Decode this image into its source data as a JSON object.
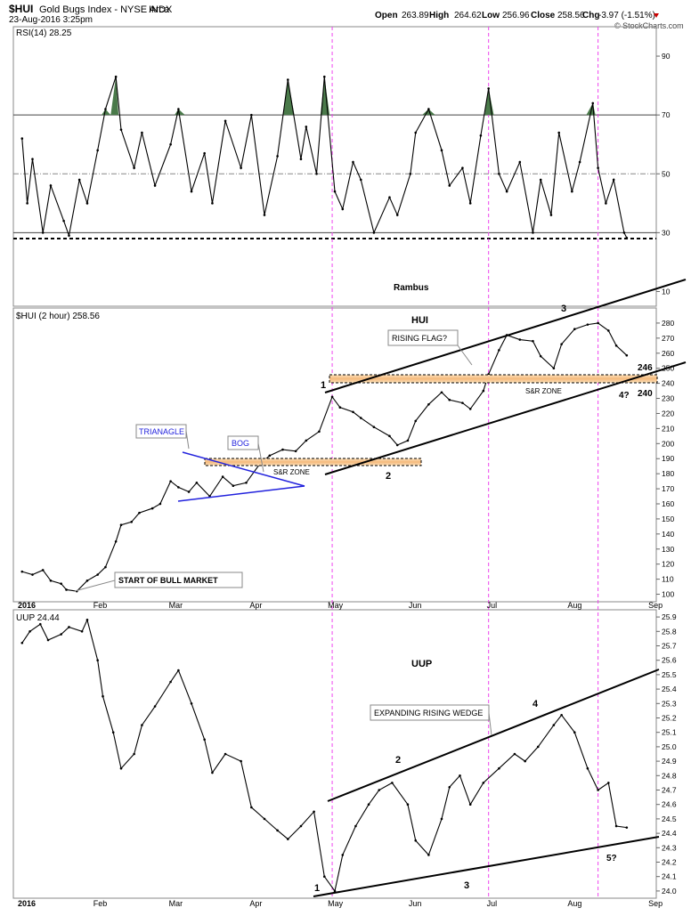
{
  "header": {
    "symbol": "$HUI",
    "name": "Gold Bugs Index - NYSE Arca",
    "exchange": "INDX",
    "date": "23-Aug-2016 3:25pm",
    "open_label": "Open",
    "open": "263.89",
    "high_label": "High",
    "high": "264.62",
    "low_label": "Low",
    "low": "256.96",
    "close_label": "Close",
    "close": "258.56",
    "chg_label": "Chg",
    "chg": "-3.97 (-1.51%)",
    "watermark": "© StockCharts.com"
  },
  "colors": {
    "price": "#000000",
    "trendline": "#000000",
    "triangle": "#2222dd",
    "sr_zone": "#f7c48a",
    "event_line": "#ee44ee",
    "rsi_fill": "#4a7a4a",
    "chg_down": "#cc0000"
  },
  "months": [
    "2016",
    "Feb",
    "Mar",
    "Apr",
    "May",
    "Jun",
    "Jul",
    "Aug",
    "Sep"
  ],
  "event_dates": [
    "2016-05-02",
    "2016-07-01",
    "2016-08-12"
  ],
  "chart_data": [
    {
      "type": "line",
      "panel": "rsi",
      "label": "RSI(14) 28.25",
      "ylim": [
        5,
        100
      ],
      "yticks": [
        10,
        30,
        50,
        70,
        90
      ],
      "reference_lines": [
        30,
        50,
        70
      ],
      "support_line": 28,
      "x_unit": "date",
      "series": [
        {
          "x": [
            "2016-01-04",
            "2016-01-06",
            "2016-01-08",
            "2016-01-12",
            "2016-01-15",
            "2016-01-20",
            "2016-01-22",
            "2016-01-26",
            "2016-01-29",
            "2016-02-02",
            "2016-02-05",
            "2016-02-09",
            "2016-02-11",
            "2016-02-16",
            "2016-02-19",
            "2016-02-24",
            "2016-03-01",
            "2016-03-04",
            "2016-03-09",
            "2016-03-14",
            "2016-03-17",
            "2016-03-22",
            "2016-03-28",
            "2016-04-01",
            "2016-04-06",
            "2016-04-11",
            "2016-04-15",
            "2016-04-20",
            "2016-04-22",
            "2016-04-26",
            "2016-04-29",
            "2016-05-03",
            "2016-05-06",
            "2016-05-10",
            "2016-05-13",
            "2016-05-18",
            "2016-05-24",
            "2016-05-27",
            "2016-06-01",
            "2016-06-03",
            "2016-06-08",
            "2016-06-13",
            "2016-06-16",
            "2016-06-21",
            "2016-06-24",
            "2016-06-28",
            "2016-07-01",
            "2016-07-05",
            "2016-07-08",
            "2016-07-13",
            "2016-07-18",
            "2016-07-21",
            "2016-07-25",
            "2016-07-28",
            "2016-08-02",
            "2016-08-05",
            "2016-08-10",
            "2016-08-12",
            "2016-08-15",
            "2016-08-18",
            "2016-08-22",
            "2016-08-23"
          ],
          "values": [
            62,
            40,
            55,
            30,
            46,
            34,
            29,
            48,
            40,
            58,
            72,
            83,
            65,
            52,
            64,
            46,
            60,
            72,
            44,
            57,
            40,
            68,
            52,
            70,
            36,
            56,
            82,
            55,
            66,
            50,
            83,
            44,
            38,
            54,
            48,
            30,
            42,
            36,
            50,
            64,
            72,
            58,
            46,
            52,
            40,
            63,
            79,
            50,
            44,
            54,
            30,
            48,
            36,
            64,
            44,
            54,
            74,
            52,
            40,
            48,
            30,
            28.25
          ]
        }
      ]
    },
    {
      "type": "line",
      "panel": "price",
      "label": "$HUI (2 hour) 258.56",
      "title": "HUI",
      "ylim": [
        95,
        290
      ],
      "yticks": [
        100,
        110,
        120,
        130,
        140,
        150,
        160,
        170,
        180,
        190,
        200,
        210,
        220,
        230,
        240,
        250,
        260,
        270,
        280
      ],
      "x_unit": "date",
      "series": [
        {
          "x": [
            "2016-01-04",
            "2016-01-08",
            "2016-01-12",
            "2016-01-15",
            "2016-01-19",
            "2016-01-21",
            "2016-01-25",
            "2016-01-29",
            "2016-02-02",
            "2016-02-05",
            "2016-02-09",
            "2016-02-11",
            "2016-02-15",
            "2016-02-18",
            "2016-02-23",
            "2016-02-26",
            "2016-03-01",
            "2016-03-04",
            "2016-03-08",
            "2016-03-11",
            "2016-03-16",
            "2016-03-21",
            "2016-03-25",
            "2016-03-30",
            "2016-04-04",
            "2016-04-08",
            "2016-04-13",
            "2016-04-18",
            "2016-04-22",
            "2016-04-27",
            "2016-05-02",
            "2016-05-05",
            "2016-05-10",
            "2016-05-13",
            "2016-05-18",
            "2016-05-24",
            "2016-05-27",
            "2016-05-31",
            "2016-06-03",
            "2016-06-08",
            "2016-06-13",
            "2016-06-16",
            "2016-06-21",
            "2016-06-24",
            "2016-06-29",
            "2016-07-01",
            "2016-07-05",
            "2016-07-08",
            "2016-07-13",
            "2016-07-18",
            "2016-07-21",
            "2016-07-26",
            "2016-07-29",
            "2016-08-03",
            "2016-08-08",
            "2016-08-12",
            "2016-08-16",
            "2016-08-19",
            "2016-08-23"
          ],
          "values": [
            115,
            113,
            116,
            109,
            107,
            103,
            102,
            109,
            113,
            118,
            135,
            146,
            148,
            154,
            157,
            160,
            175,
            171,
            168,
            174,
            165,
            178,
            172,
            174,
            186,
            192,
            196,
            195,
            202,
            208,
            231,
            224,
            221,
            217,
            211,
            205,
            199,
            202,
            215,
            226,
            234,
            229,
            227,
            223,
            235,
            246,
            262,
            272,
            269,
            268,
            258,
            250,
            266,
            276,
            279,
            280,
            275,
            265,
            258.56
          ]
        }
      ],
      "annotations": [
        "RISING FLAG?",
        "TRIANAGLE",
        "BOG",
        "START OF BULL MARKET",
        "S&R ZONE",
        "S&R ZONE",
        "1",
        "2",
        "3",
        "4?",
        "246",
        "240"
      ],
      "sr_zones": [
        [
          186,
          190
        ],
        [
          241,
          247
        ]
      ]
    },
    {
      "type": "line",
      "panel": "uup",
      "label": "UUP 24.44",
      "title": "UUP",
      "ylim": [
        23.95,
        25.95
      ],
      "yticks": [
        24.0,
        24.1,
        24.2,
        24.3,
        24.4,
        24.5,
        24.6,
        24.7,
        24.8,
        24.9,
        25.0,
        25.1,
        25.2,
        25.3,
        25.4,
        25.5,
        25.6,
        25.7,
        25.8,
        25.9
      ],
      "x_unit": "date",
      "series": [
        {
          "x": [
            "2016-01-04",
            "2016-01-07",
            "2016-01-11",
            "2016-01-14",
            "2016-01-19",
            "2016-01-22",
            "2016-01-27",
            "2016-01-29",
            "2016-02-02",
            "2016-02-04",
            "2016-02-08",
            "2016-02-11",
            "2016-02-16",
            "2016-02-19",
            "2016-02-24",
            "2016-03-01",
            "2016-03-04",
            "2016-03-09",
            "2016-03-14",
            "2016-03-17",
            "2016-03-22",
            "2016-03-28",
            "2016-04-01",
            "2016-04-06",
            "2016-04-11",
            "2016-04-15",
            "2016-04-20",
            "2016-04-25",
            "2016-04-29",
            "2016-05-03",
            "2016-05-06",
            "2016-05-11",
            "2016-05-16",
            "2016-05-20",
            "2016-05-25",
            "2016-05-31",
            "2016-06-03",
            "2016-06-08",
            "2016-06-13",
            "2016-06-16",
            "2016-06-20",
            "2016-06-24",
            "2016-06-29",
            "2016-07-05",
            "2016-07-11",
            "2016-07-15",
            "2016-07-20",
            "2016-07-26",
            "2016-07-29",
            "2016-08-03",
            "2016-08-08",
            "2016-08-12",
            "2016-08-16",
            "2016-08-19",
            "2016-08-23"
          ],
          "values": [
            25.72,
            25.8,
            25.85,
            25.74,
            25.78,
            25.83,
            25.8,
            25.88,
            25.6,
            25.35,
            25.1,
            24.85,
            24.95,
            25.15,
            25.28,
            25.45,
            25.53,
            25.3,
            25.05,
            24.82,
            24.95,
            24.9,
            24.58,
            24.5,
            24.42,
            24.36,
            24.45,
            24.55,
            24.1,
            24.0,
            24.25,
            24.45,
            24.6,
            24.7,
            24.75,
            24.6,
            24.35,
            24.25,
            24.5,
            24.72,
            24.8,
            24.6,
            24.75,
            24.85,
            24.95,
            24.9,
            25.0,
            25.15,
            25.22,
            25.1,
            24.85,
            24.7,
            24.75,
            24.45,
            24.44
          ]
        }
      ],
      "annotations": [
        "EXPANDING RISING WEDGE",
        "1",
        "2",
        "3",
        "4",
        "5?"
      ]
    }
  ],
  "notes": {
    "author": "Rambus"
  }
}
